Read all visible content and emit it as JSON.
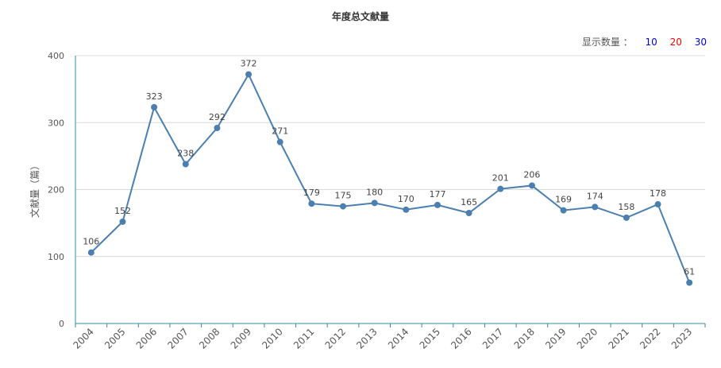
{
  "header": {
    "title": "年度总文献量"
  },
  "display_count": {
    "label": "显示数量 ：",
    "options": [
      {
        "text": "10",
        "color": "#0000ee"
      },
      {
        "text": "20",
        "color": "#ee0000"
      },
      {
        "text": "30",
        "color": "#0000ee"
      }
    ]
  },
  "colors": {
    "line": "#4a7fb0",
    "axis": "#2f8f9d",
    "grid": "#d9d9d9"
  },
  "chart_data": {
    "type": "line",
    "title": "年度总文献量",
    "xlabel": "",
    "ylabel": "文献量（篇）",
    "ylim": [
      0,
      400
    ],
    "yticks": [
      0,
      100,
      200,
      300,
      400
    ],
    "grid": true,
    "categories": [
      "2004",
      "2005",
      "2006",
      "2007",
      "2008",
      "2009",
      "2010",
      "2011",
      "2012",
      "2013",
      "2014",
      "2015",
      "2016",
      "2017",
      "2018",
      "2019",
      "2020",
      "2021",
      "2022",
      "2023"
    ],
    "values": [
      106,
      152,
      323,
      238,
      292,
      372,
      271,
      179,
      175,
      180,
      170,
      177,
      165,
      201,
      206,
      169,
      174,
      158,
      178,
      61
    ]
  }
}
